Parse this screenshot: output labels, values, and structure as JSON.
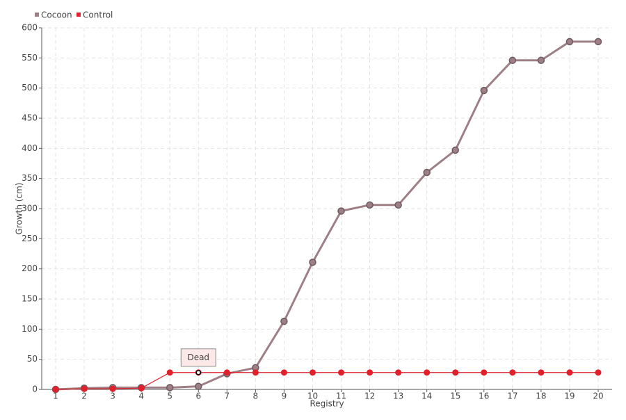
{
  "chart_data": {
    "type": "line",
    "xlabel": "Registry",
    "ylabel": "Growth (cm)",
    "categories": [
      "1",
      "2",
      "3",
      "4",
      "5",
      "6",
      "7",
      "8",
      "9",
      "10",
      "11",
      "12",
      "13",
      "14",
      "15",
      "16",
      "17",
      "18",
      "19",
      "20"
    ],
    "series": [
      {
        "name": "Cocoon",
        "color": "#9e7f86",
        "values": [
          0,
          2,
          3,
          3,
          3,
          5,
          26,
          36,
          113,
          211,
          296,
          306,
          306,
          360,
          397,
          496,
          546,
          546,
          577,
          577
        ]
      },
      {
        "name": "Control",
        "color": "#e0202a",
        "values": [
          0,
          1,
          1,
          2,
          28,
          28,
          28,
          28,
          28,
          28,
          28,
          28,
          28,
          28,
          28,
          28,
          28,
          28,
          28,
          28
        ]
      }
    ],
    "annotations": [
      {
        "text": "Dead",
        "series": "Control",
        "category": "6"
      }
    ],
    "ylim": [
      0,
      600
    ],
    "yticks": [
      0,
      50,
      100,
      150,
      200,
      250,
      300,
      350,
      400,
      450,
      500,
      550,
      600
    ],
    "grid": true,
    "legend": "top-left"
  }
}
